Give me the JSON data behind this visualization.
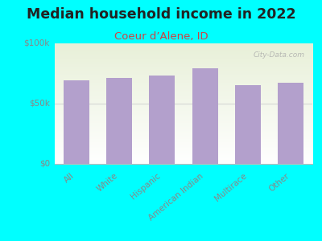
{
  "title": "Median household income in 2022",
  "subtitle": "Coeur d’Alene, ID",
  "categories": [
    "All",
    "White",
    "Hispanic",
    "American Indian",
    "Multirace",
    "Other"
  ],
  "values": [
    69000,
    71000,
    73000,
    79000,
    65000,
    67000
  ],
  "bar_color": "#b3a0cc",
  "background_color": "#00ffff",
  "plot_bg_color_top": "#e8f0d8",
  "plot_bg_color_bottom": "#ffffff",
  "title_color": "#222222",
  "subtitle_color": "#cc4444",
  "tick_color": "#888888",
  "ytick_labels": [
    "$0",
    "$50k",
    "$100k"
  ],
  "ytick_values": [
    0,
    50000,
    100000
  ],
  "ylim": [
    0,
    100000
  ],
  "watermark": "City-Data.com",
  "xlabel_rotation": 40,
  "title_fontsize": 12.5,
  "subtitle_fontsize": 9.5,
  "tick_fontsize": 7.5,
  "bar_width": 0.6
}
